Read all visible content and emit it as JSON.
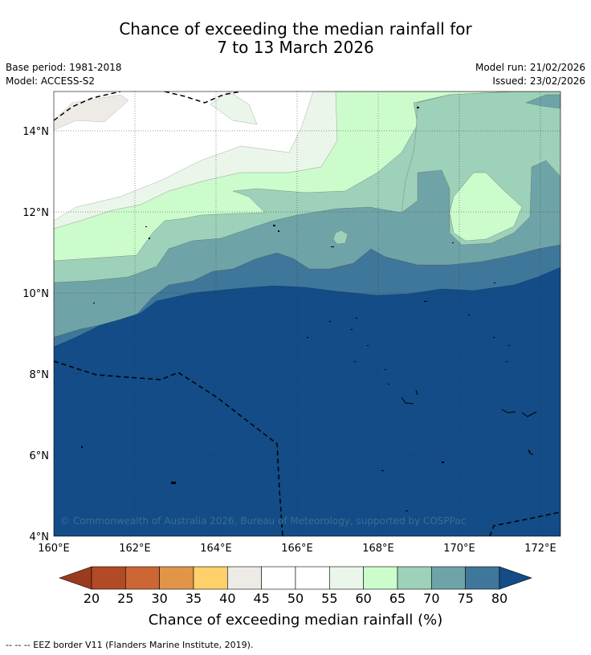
{
  "title": {
    "line1": "Chance of exceeding the median rainfall for",
    "line2": "7 to 13 March 2026"
  },
  "meta": {
    "base_period": "Base period: 1981-2018",
    "model": "Model: ACCESS-S2",
    "model_run": "Model run: 21/02/2026",
    "issued": "Issued: 23/02/2026"
  },
  "axes": {
    "y_ticks": [
      "14°N",
      "12°N",
      "10°N",
      "8°N",
      "6°N",
      "4°N"
    ],
    "x_ticks": [
      "160°E",
      "162°E",
      "164°E",
      "166°E",
      "168°E",
      "170°E",
      "172°E"
    ]
  },
  "copyright": "© Commonwealth of Australia 2026, Bureau of Meteorology, supported by COSPPac",
  "colorbar": {
    "title": "Chance of exceeding median rainfall (%)",
    "ticks": [
      "20",
      "25",
      "30",
      "35",
      "40",
      "45",
      "50",
      "55",
      "60",
      "65",
      "70",
      "75",
      "80"
    ],
    "low_color": "#9b3a1f",
    "high_color": "#134c87",
    "colors": [
      "#b24a26",
      "#cc6634",
      "#e09548",
      "#fdd06a",
      "#eeebe6",
      "#ffffff",
      "#ffffff",
      "#eaf6e9",
      "#ccfccc",
      "#9dd1b9",
      "#6ea4a8",
      "#3e7799"
    ]
  },
  "footer": "--  --  -- EEZ border V11 (Flanders Marine Institute, 2019)."
}
